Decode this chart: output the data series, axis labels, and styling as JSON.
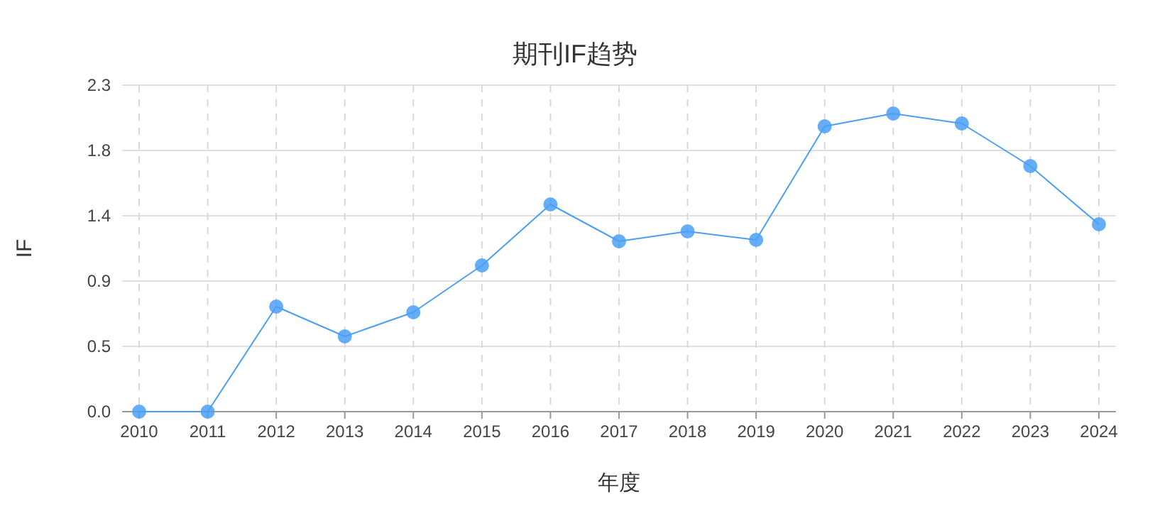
{
  "chart_data": {
    "type": "line",
    "title": "期刊IF趋势",
    "xlabel": "年度",
    "ylabel": "IF",
    "categories": [
      "2010",
      "2011",
      "2012",
      "2013",
      "2014",
      "2015",
      "2016",
      "2017",
      "2018",
      "2019",
      "2020",
      "2021",
      "2022",
      "2023",
      "2024"
    ],
    "series": [
      {
        "color": "#4a9ff5",
        "values": [
          0,
          0,
          0.74,
          0.53,
          0.7,
          1.03,
          1.46,
          1.2,
          1.27,
          1.21,
          2.01,
          2.1,
          2.03,
          1.73,
          1.32
        ]
      }
    ],
    "ylim": [
      0,
      2.3
    ],
    "yticks": [
      {
        "value": 0,
        "label": "0.0"
      },
      {
        "value": 0.46,
        "label": "0.5"
      },
      {
        "value": 0.92,
        "label": "0.9"
      },
      {
        "value": 1.38,
        "label": "1.4"
      },
      {
        "value": 1.84,
        "label": "1.8"
      },
      {
        "value": 2.3,
        "label": "2.3"
      }
    ],
    "grid": true,
    "marker": "circle",
    "line_style": "solid"
  }
}
